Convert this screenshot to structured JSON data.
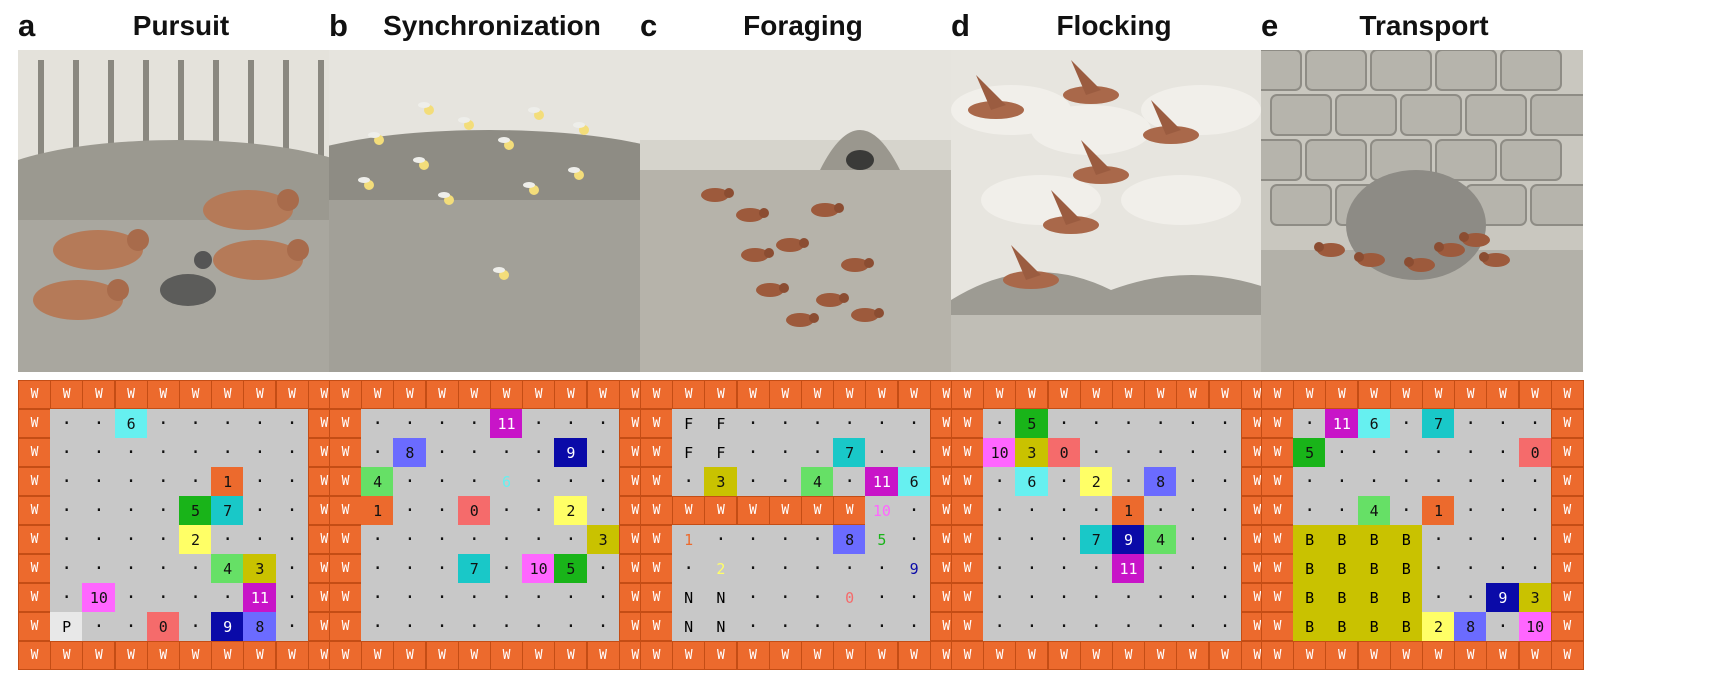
{
  "panels": [
    {
      "letter": "a",
      "title": "Pursuit",
      "scene": "pursuit",
      "rows": [
        "W W W W W W W W W W",
        "W . . 6 . . . . . W",
        "W . . . . . . . . W",
        "W . . . . . 1 . . W",
        "W . . . . 5 7 . . W",
        "W . . . . 2 . . . W",
        "W . . . . . 4 3 . W",
        "W . 10 . . . . 11 . W",
        "W P . . 0 . 9 8 . W",
        "W W W W W W W W W W"
      ]
    },
    {
      "letter": "b",
      "title": "Synchronization",
      "scene": "sync",
      "rows": [
        "W W W W W W W W W W",
        "W . . . . 11 . . . W",
        "W . 8 . . . . 9 . W",
        "W 4 . . . 6 . . . W",
        "W 1 . . 0 . . 2 . W",
        "W . . . . . . . 3 W",
        "W . . . 7 . 10 5 . W",
        "W . . . . . . . . W",
        "W . . . . . . . . W",
        "W W W W W W W W W W"
      ]
    },
    {
      "letter": "c",
      "title": "Foraging",
      "scene": "foraging",
      "rows": [
        "W W W W W W W W W W",
        "W F F . . . . . . W",
        "W F F . . . 7 . . W",
        "W . 3 . . 4 . 11 6 W",
        "W W W W W W W 10 . W",
        "W 1 . . . . 8 5 . W",
        "W . 2 . . . . . 9 W",
        "W N N . . . 0 . . W",
        "W N N . . . . . . W",
        "W W W W W W W W W W"
      ]
    },
    {
      "letter": "d",
      "title": "Flocking",
      "scene": "flocking",
      "rows": [
        "W W W W W W W W W W",
        "W . 5 . . . . . . W",
        "W 10 3 0 . . . . . W",
        "W . 6 . 2 . 8 . . W",
        "W . . . . 1 . . . W",
        "W . . . 7 9 4 . . W",
        "W . . . . 11 . . . W",
        "W . . . . . . . . W",
        "W . . . . . . . . W",
        "W W W W W W W W W W"
      ]
    },
    {
      "letter": "e",
      "title": "Transport",
      "scene": "transport",
      "rows": [
        "W W W W W W W W W W",
        "W . 11 6 . 7 . . . W",
        "W 5 . . . . . . 0 W",
        "W . . . . . . . . W",
        "W . . 4 . 1 . . . W",
        "W B B B B . . . . W",
        "W B B B B . . . . W",
        "W B B B B . . 9 3 W",
        "W B B B B 2 8 . 10 W",
        "W W W W W W W W W W"
      ]
    }
  ],
  "colors": {
    "wall": "#ec6a2d",
    "floor": "#c8c8c8",
    "prey": "#e8e8e8",
    "box": "#c9c200",
    "agents": {
      "0": "#f56b6b",
      "1": "#ec6a2d",
      "2": "#ffff66",
      "3": "#c9c200",
      "4": "#66e066",
      "5": "#19b419",
      "6": "#66f0f0",
      "7": "#19c8c8",
      "8": "#6b6bff",
      "9": "#0a0aa8",
      "10": "#ff66ff",
      "11": "#c814c8"
    }
  },
  "text_only_cells": {
    "b": [
      "6"
    ],
    "c": [
      "1",
      "2",
      "5",
      "9",
      "10",
      "0"
    ]
  }
}
